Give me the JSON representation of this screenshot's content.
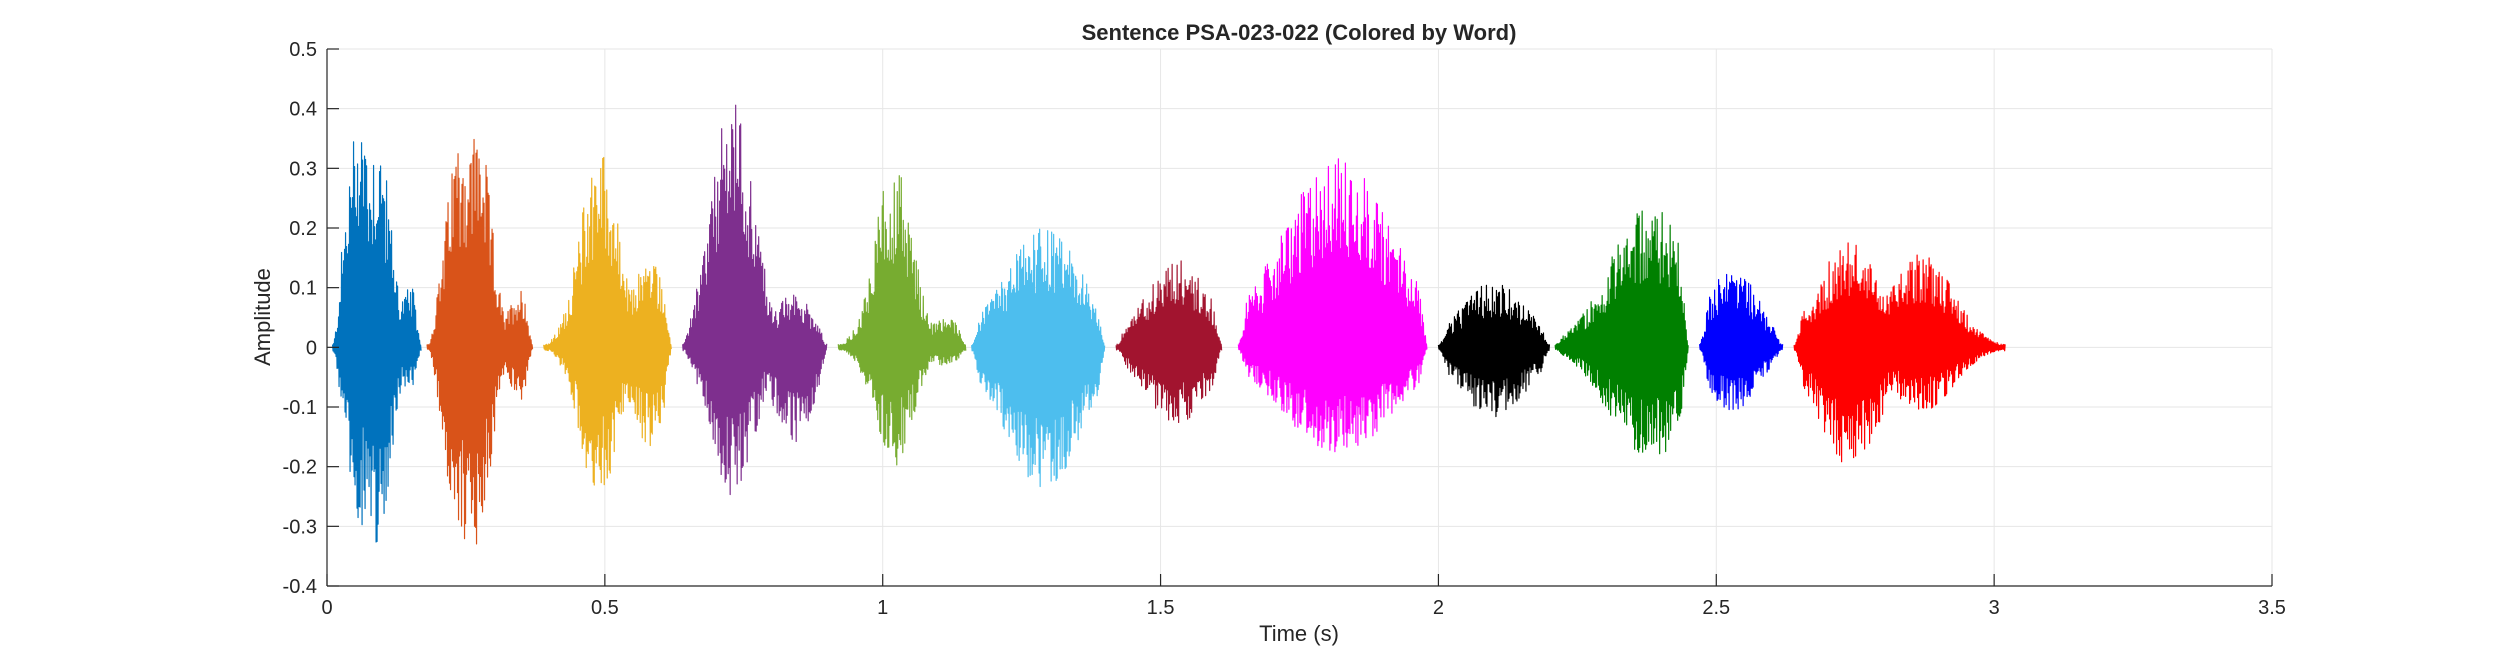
{
  "chart_data": {
    "type": "line",
    "title": "Sentence PSA-023-022 (Colored by Word)",
    "xlabel": "Time (s)",
    "ylabel": "Amplitude",
    "xlim": [
      0,
      3.5
    ],
    "ylim": [
      -0.4,
      0.5
    ],
    "xticks": [
      0,
      0.5,
      1,
      1.5,
      2,
      2.5,
      3,
      3.5
    ],
    "xtick_labels": [
      "0",
      "0.5",
      "1",
      "1.5",
      "2",
      "2.5",
      "3",
      "3.5"
    ],
    "yticks": [
      -0.4,
      -0.3,
      -0.2,
      -0.1,
      0,
      0.1,
      0.2,
      0.3,
      0.4,
      0.5
    ],
    "ytick_labels": [
      "-0.4",
      "-0.3",
      "-0.2",
      "-0.1",
      "0",
      "0.1",
      "0.2",
      "0.3",
      "0.4",
      "0.5"
    ],
    "grid": true,
    "series": [
      {
        "color": "#0072BD",
        "start": 0.01,
        "end": 0.17,
        "peaks": [
          [
            0.06,
            0.41,
            -0.3
          ],
          [
            0.09,
            0.36,
            -0.33
          ],
          [
            0.15,
            0.1,
            -0.07
          ]
        ]
      },
      {
        "color": "#D95319",
        "start": 0.18,
        "end": 0.37,
        "peaks": [
          [
            0.24,
            0.37,
            -0.34
          ],
          [
            0.27,
            0.38,
            -0.33
          ],
          [
            0.35,
            0.1,
            -0.09
          ]
        ]
      },
      {
        "color": "#EDB120",
        "start": 0.39,
        "end": 0.62,
        "peaks": [
          [
            0.49,
            0.34,
            -0.26
          ],
          [
            0.58,
            0.15,
            -0.17
          ]
        ]
      },
      {
        "color": "#7E2F8E",
        "start": 0.64,
        "end": 0.9,
        "peaks": [
          [
            0.73,
            0.42,
            -0.26
          ],
          [
            0.84,
            0.09,
            -0.16
          ]
        ]
      },
      {
        "color": "#77AC30",
        "start": 0.92,
        "end": 1.15,
        "peaks": [
          [
            1.02,
            0.31,
            -0.2
          ],
          [
            1.11,
            0.05,
            -0.03
          ]
        ]
      },
      {
        "color": "#4DBEEE",
        "start": 1.16,
        "end": 1.4,
        "peaks": [
          [
            1.29,
            0.2,
            -0.24
          ]
        ]
      },
      {
        "color": "#A2142F",
        "start": 1.42,
        "end": 1.61,
        "peaks": [
          [
            1.53,
            0.15,
            -0.13
          ]
        ]
      },
      {
        "color": "#FF00FF",
        "start": 1.64,
        "end": 1.98,
        "peaks": [
          [
            1.82,
            0.32,
            -0.18
          ]
        ]
      },
      {
        "color": "#000000",
        "start": 2.0,
        "end": 2.2,
        "peaks": [
          [
            2.1,
            0.11,
            -0.12
          ]
        ]
      },
      {
        "color": "#008000",
        "start": 2.21,
        "end": 2.45,
        "peaks": [
          [
            2.38,
            0.24,
            -0.19
          ]
        ]
      },
      {
        "color": "#0000FF",
        "start": 2.47,
        "end": 2.62,
        "peaks": [
          [
            2.53,
            0.14,
            -0.11
          ]
        ]
      },
      {
        "color": "#FF0000",
        "start": 2.64,
        "end": 3.02,
        "peaks": [
          [
            2.74,
            0.18,
            -0.2
          ],
          [
            2.87,
            0.16,
            -0.11
          ]
        ]
      }
    ]
  }
}
